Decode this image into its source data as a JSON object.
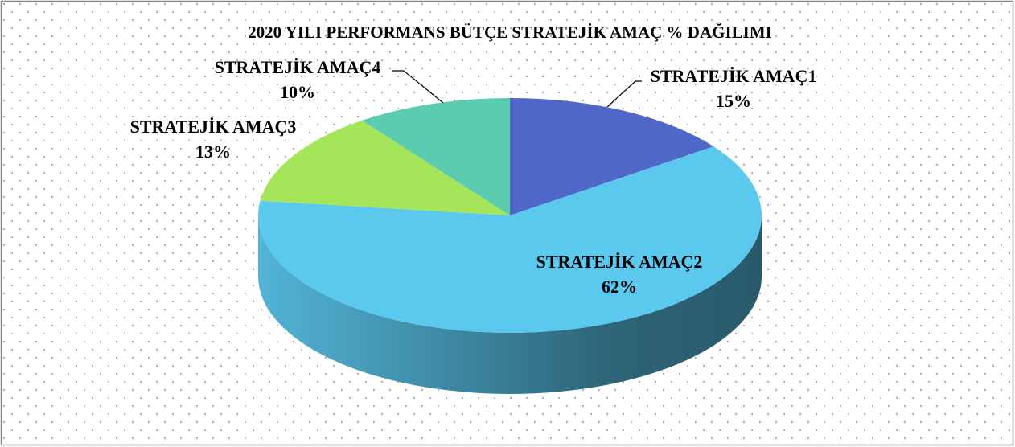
{
  "chart_data": {
    "type": "pie",
    "title": "2020 YILI PERFORMANS BÜTÇE STRATEJİK AMAÇ % DAĞILIMI",
    "categories": [
      "STRATEJİK AMAÇ1",
      "STRATEJİK AMAÇ2",
      "STRATEJİK AMAÇ3",
      "STRATEJİK AMAÇ4"
    ],
    "values": [
      15,
      62,
      13,
      10
    ],
    "value_labels": [
      "15%",
      "62%",
      "13%",
      "10%"
    ],
    "colors": [
      "#4f67c6",
      "#5bc8ee",
      "#a4e55a",
      "#5bccb0"
    ]
  }
}
